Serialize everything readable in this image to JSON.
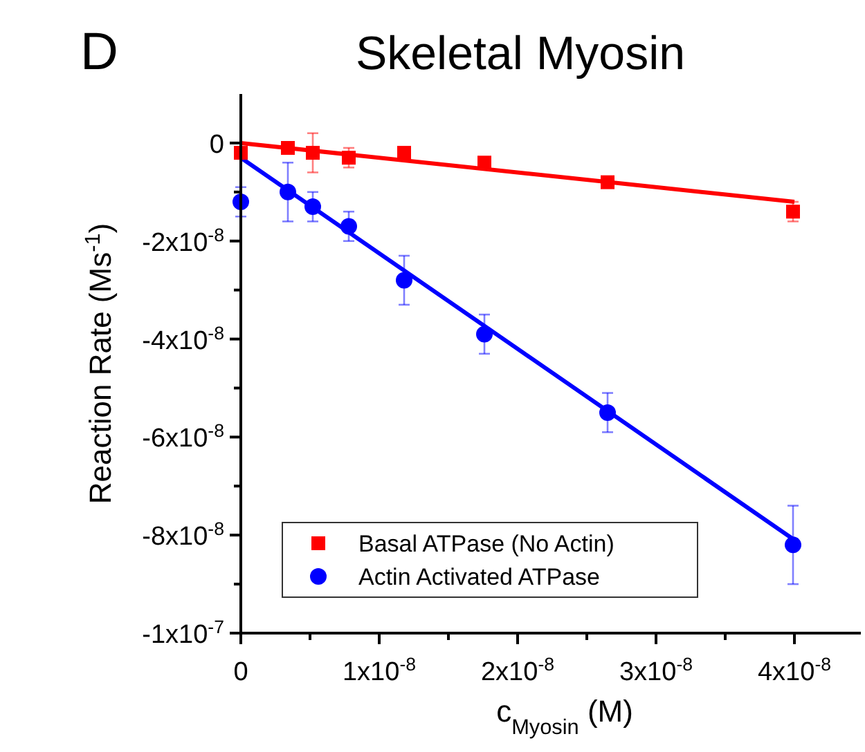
{
  "chart_data": {
    "type": "scatter",
    "title": "Skeletal Myosin",
    "annotations": [
      "D"
    ],
    "xlabel": "c$_{Myosin}$ (M)",
    "ylabel": "Reaction Rate (Ms$^{-1}$)",
    "xlim": [
      0,
      4.48e-08
    ],
    "xticks": [
      0,
      {
        "value": 5e-09,
        "label": null
      },
      {
        "value": 1e-08,
        "label": "1x10$^{-8}$"
      },
      {
        "value": 1.5e-08,
        "label": null
      },
      {
        "value": 2e-08,
        "label": "2x10$^{-8}$"
      },
      {
        "value": 2.5e-08,
        "label": null
      },
      {
        "value": 3e-08,
        "label": "3x10$^{-8}$"
      },
      {
        "value": 3.5e-08,
        "label": null
      },
      {
        "value": 4e-08,
        "label": "4x10$^{-8}$"
      }
    ],
    "ylim": [
      -1e-07,
      1e-08
    ],
    "yticks": [
      {
        "value": -1e-07,
        "label": "-1x10$^{-7}$"
      },
      {
        "value": -9e-08,
        "label": null
      },
      {
        "value": -8e-08,
        "label": "-8x10$^{-8}$"
      },
      {
        "value": -7e-08,
        "label": null
      },
      {
        "value": -6e-08,
        "label": "-6x10$^{-8}$"
      },
      {
        "value": -5e-08,
        "label": null
      },
      {
        "value": -4e-08,
        "label": "-4x10$^{-8}$"
      },
      {
        "value": -3e-08,
        "label": null
      },
      {
        "value": -2e-08,
        "label": "-2x10$^{-8}$"
      },
      {
        "value": -1e-08,
        "label": null
      },
      0
    ],
    "grid": false,
    "legend": "bottom left",
    "series": [
      {
        "name": "Basal ATPase (No Actin)",
        "color": "#ff0000",
        "marker": "square",
        "x": [
          0,
          3.4e-09,
          5.2e-09,
          7.8e-09,
          1.18e-08,
          1.76e-08,
          2.65e-08,
          3.99e-08
        ],
        "values": [
          -2e-09,
          -1e-09,
          -2e-09,
          -3e-09,
          -2e-09,
          -4e-09,
          -8e-09,
          -1.4e-08
        ],
        "errors": [
          1e-09,
          1e-09,
          4e-09,
          2e-09,
          1e-09,
          1e-09,
          1e-09,
          2e-09
        ]
      },
      {
        "name": "Actin Activated ATPase",
        "color": "#0000ff",
        "marker": "circle",
        "x": [
          0,
          3.4e-09,
          5.2e-09,
          7.8e-09,
          1.18e-08,
          1.76e-08,
          2.65e-08,
          3.99e-08
        ],
        "values": [
          -1.2e-08,
          -1e-08,
          -1.3e-08,
          -1.7e-08,
          -2.8e-08,
          -3.9e-08,
          -5.5e-08,
          -8.2e-08
        ],
        "errors": [
          3e-09,
          6e-09,
          3e-09,
          3e-09,
          5e-09,
          4e-09,
          4e-09,
          8e-09
        ]
      },
      {
        "type": "line",
        "color": "#ff0000",
        "marker": "none",
        "x": [
          0,
          4e-08
        ],
        "values": [
          0,
          -1.2e-08
        ]
      },
      {
        "type": "line",
        "color": "#0000ff",
        "marker": "none",
        "x": [
          0,
          4e-08
        ],
        "values": [
          -3e-09,
          -8.1e-08
        ]
      }
    ]
  }
}
